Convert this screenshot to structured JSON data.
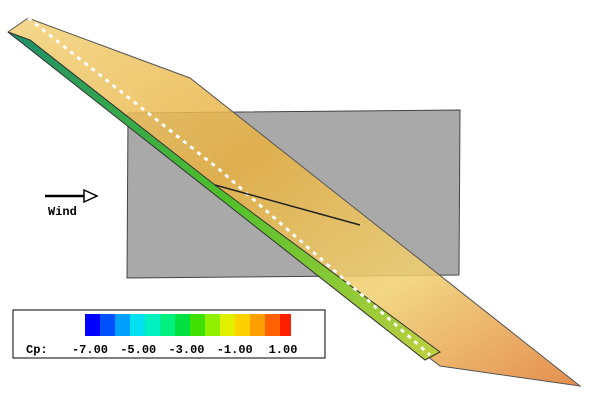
{
  "wind_label": "Wind",
  "legend": {
    "label": "Cp:",
    "ticks": [
      "-7.00",
      "-5.00",
      "-3.00",
      "-1.00",
      "1.00"
    ]
  }
}
